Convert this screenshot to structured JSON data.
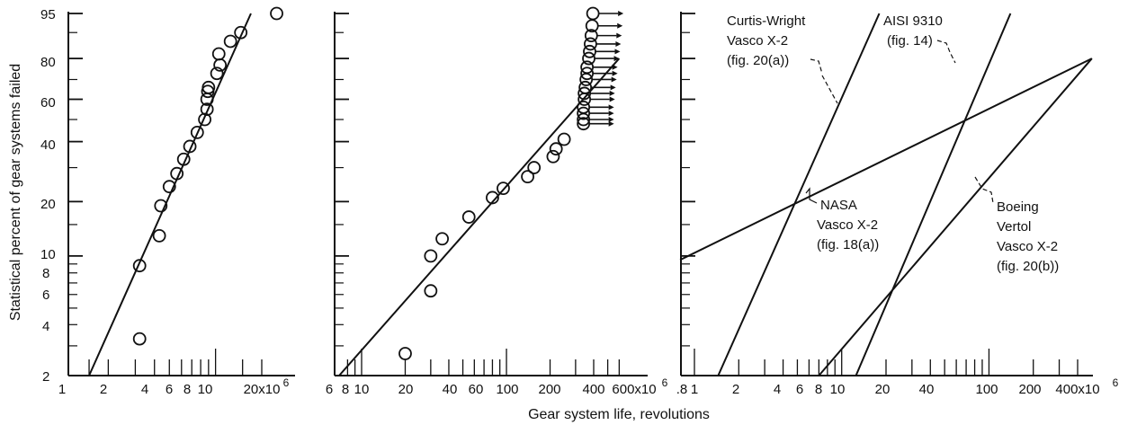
{
  "x_axis_title": "Gear system life, revolutions",
  "y_axis_title": "Statistical percent of gear systems failed",
  "y_ticks": [
    "95",
    "80",
    "60",
    "40",
    "20",
    "10",
    "8",
    "6",
    "4",
    "2"
  ],
  "panel1_ticks": [
    "1",
    "2",
    "4",
    "6",
    "8",
    "10",
    "20x10"
  ],
  "panel2_ticks": [
    "6",
    "8",
    "10",
    "20",
    "40",
    "60",
    "100",
    "200",
    "400",
    "600x10"
  ],
  "panel3_ticks": [
    ".8",
    "1",
    "2",
    "4",
    "6",
    "8",
    "10",
    "20",
    "40",
    "100",
    "200",
    "400x10"
  ],
  "exponent": "6",
  "annotations": {
    "curtis": [
      "Curtis-Wright",
      "Vasco X-2",
      "(fig. 20(a))"
    ],
    "aisi": [
      "AISI 9310",
      "(fig. 14)"
    ],
    "nasa": [
      "NASA",
      "Vasco X-2",
      "(fig. 18(a))"
    ],
    "boeing": [
      "Boeing",
      "Vertol",
      "Vasco X-2",
      "(fig. 20(b))"
    ]
  },
  "chart_data": [
    {
      "type": "scatter",
      "xlabel": "Gear system life, revolutions",
      "ylabel": "Statistical percent of gear systems failed",
      "xscale": "log",
      "yscale": "weibull",
      "xlim": [
        1,
        30
      ],
      "ylim": [
        2,
        95
      ],
      "unit": "x10^6 revolutions",
      "series": [
        {
          "kind": "points",
          "x": [
            3.2,
            3.2,
            4.3,
            4.4,
            5.0,
            5.6,
            6.2,
            6.8,
            7.6,
            8.5,
            8.8,
            8.8,
            8.9,
            9.0,
            10.2,
            10.7,
            10.5,
            12.5,
            14.6,
            25.0
          ],
          "y": [
            3.3,
            8.8,
            13.0,
            19.0,
            24.0,
            28.0,
            33.0,
            38.0,
            44.0,
            50.0,
            55.0,
            60.0,
            64.0,
            66.0,
            73.0,
            77.0,
            82.0,
            87.0,
            90.0,
            95.0
          ],
          "runout": [
            false,
            false,
            false,
            false,
            false,
            false,
            false,
            false,
            false,
            false,
            false,
            false,
            false,
            false,
            false,
            false,
            false,
            false,
            false,
            false
          ]
        },
        {
          "kind": "line",
          "x": [
            1.5,
            17.0
          ],
          "y": [
            2.0,
            95.0
          ]
        }
      ]
    },
    {
      "type": "scatter",
      "xlabel": "Gear system life, revolutions",
      "ylabel": "Statistical percent of gear systems failed",
      "xscale": "log",
      "yscale": "weibull",
      "xlim": [
        6,
        600
      ],
      "ylim": [
        2,
        95
      ],
      "unit": "x10^6 revolutions",
      "series": [
        {
          "kind": "points",
          "x": [
            20,
            30,
            30,
            36,
            55,
            80,
            95,
            140,
            155,
            210,
            220,
            250,
            340,
            340,
            340,
            340,
            345,
            345,
            350,
            355,
            360,
            360,
            370,
            375,
            380,
            385,
            390,
            395
          ],
          "y": [
            2.7,
            6.3,
            10.0,
            12.5,
            16.5,
            21.0,
            23.5,
            27.0,
            30.0,
            34.0,
            37.0,
            41.0,
            48.0,
            50.0,
            53.0,
            56.0,
            60.0,
            63.0,
            66.0,
            70.0,
            73.0,
            76.0,
            80.0,
            83.0,
            86.0,
            89.0,
            92.0,
            95.0
          ],
          "runout": [
            false,
            false,
            false,
            false,
            false,
            false,
            false,
            false,
            false,
            false,
            false,
            false,
            true,
            true,
            true,
            true,
            true,
            true,
            true,
            true,
            true,
            true,
            true,
            true,
            true,
            true,
            true,
            true
          ]
        },
        {
          "kind": "line",
          "x": [
            7.0,
            600.0
          ],
          "y": [
            2.0,
            80.0
          ]
        }
      ]
    },
    {
      "type": "line",
      "xlabel": "Gear system life, revolutions",
      "ylabel": "Statistical percent of gear systems failed",
      "xscale": "log",
      "yscale": "weibull",
      "xlim": [
        0.8,
        400
      ],
      "ylim": [
        2,
        95
      ],
      "unit": "x10^6 revolutions",
      "series": [
        {
          "name": "Curtis-Wright Vasco X-2 (fig. 20(a))",
          "x": [
            1.45,
            18.0
          ],
          "y": [
            2.0,
            95.0
          ]
        },
        {
          "name": "AISI 9310 (fig. 14)",
          "x": [
            12.5,
            140.0
          ],
          "y": [
            2.0,
            95.0
          ]
        },
        {
          "name": "NASA Vasco X-2 (fig. 18(a))",
          "x": [
            0.8,
            500.0
          ],
          "y": [
            9.5,
            80.0
          ]
        },
        {
          "name": "Boeing Vertol Vasco X-2 (fig. 20(b))",
          "x": [
            7.0,
            500.0
          ],
          "y": [
            2.0,
            80.0
          ]
        }
      ]
    }
  ]
}
